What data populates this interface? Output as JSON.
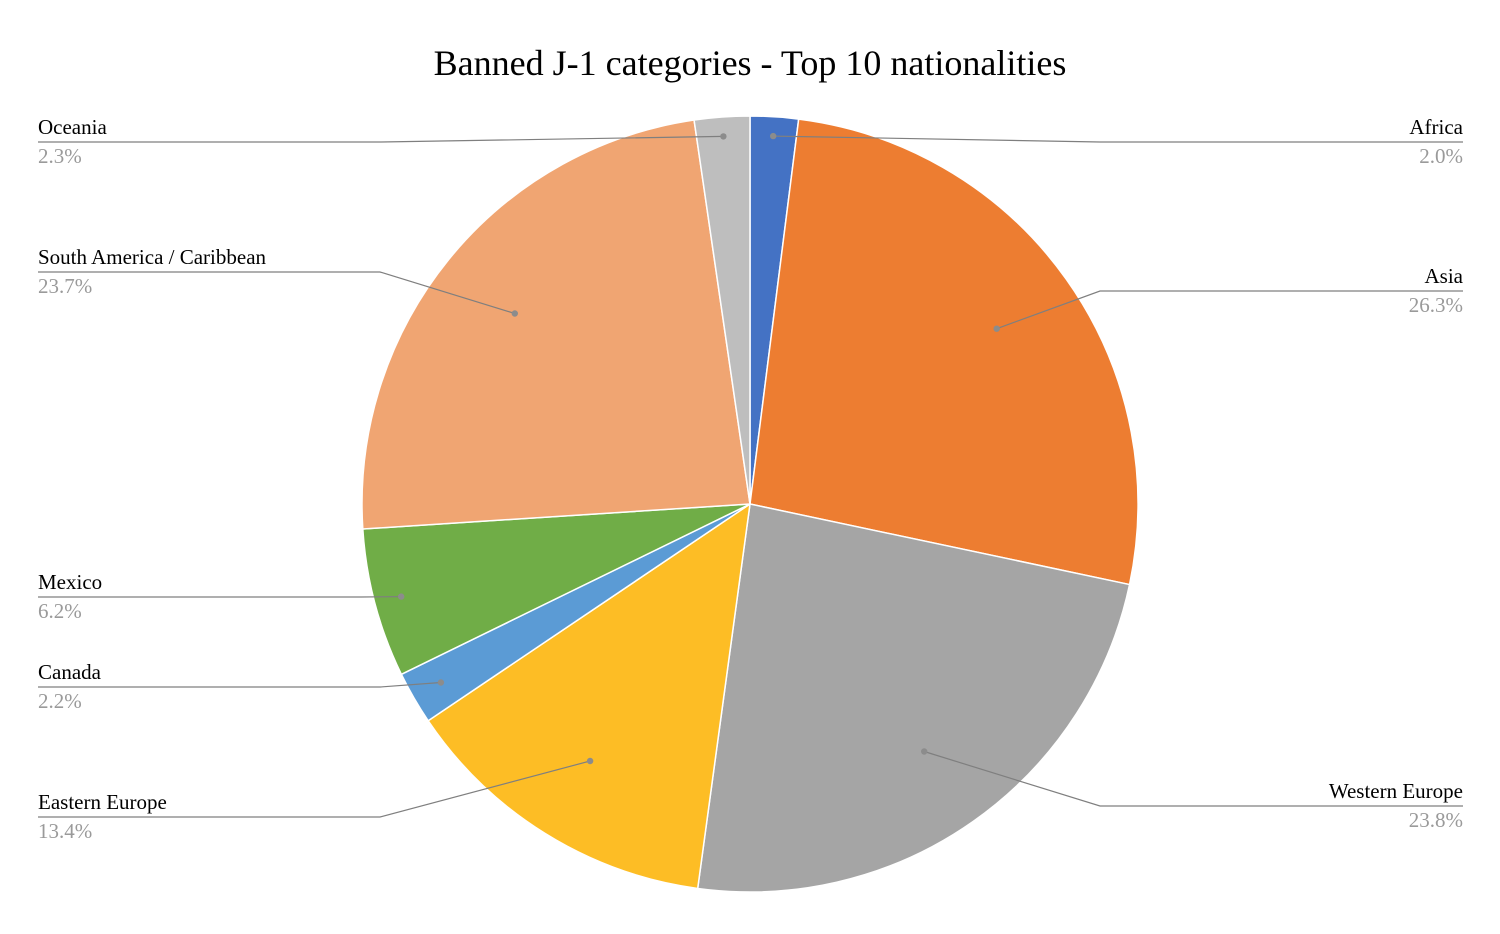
{
  "chart_data": {
    "type": "pie",
    "title": "Banned J-1 categories - Top 10 nationalities",
    "start_angle_deg": 0,
    "direction": "clockwise",
    "legend": "none",
    "label_style": "callout-lines",
    "slices": [
      {
        "label": "Africa",
        "value": 2.0,
        "value_label": "2.0%",
        "color": "#4472C4",
        "label_side": "right"
      },
      {
        "label": "Asia",
        "value": 26.3,
        "value_label": "26.3%",
        "color": "#ED7D31",
        "label_side": "right"
      },
      {
        "label": "Western Europe",
        "value": 23.8,
        "value_label": "23.8%",
        "color": "#A5A5A5",
        "label_side": "right"
      },
      {
        "label": "Eastern Europe",
        "value": 13.4,
        "value_label": "13.4%",
        "color": "#FDBD25",
        "label_side": "left"
      },
      {
        "label": "Canada",
        "value": 2.2,
        "value_label": "2.2%",
        "color": "#5B9BD5",
        "label_side": "left"
      },
      {
        "label": "Mexico",
        "value": 6.2,
        "value_label": "6.2%",
        "color": "#70AD47",
        "label_side": "left"
      },
      {
        "label": "South America / Caribbean",
        "value": 23.7,
        "value_label": "23.7%",
        "color": "#F0A572",
        "label_side": "left"
      },
      {
        "label": "Oceania",
        "value": 2.3,
        "value_label": "2.3%",
        "color": "#BEBEBE",
        "label_side": "left"
      }
    ]
  }
}
